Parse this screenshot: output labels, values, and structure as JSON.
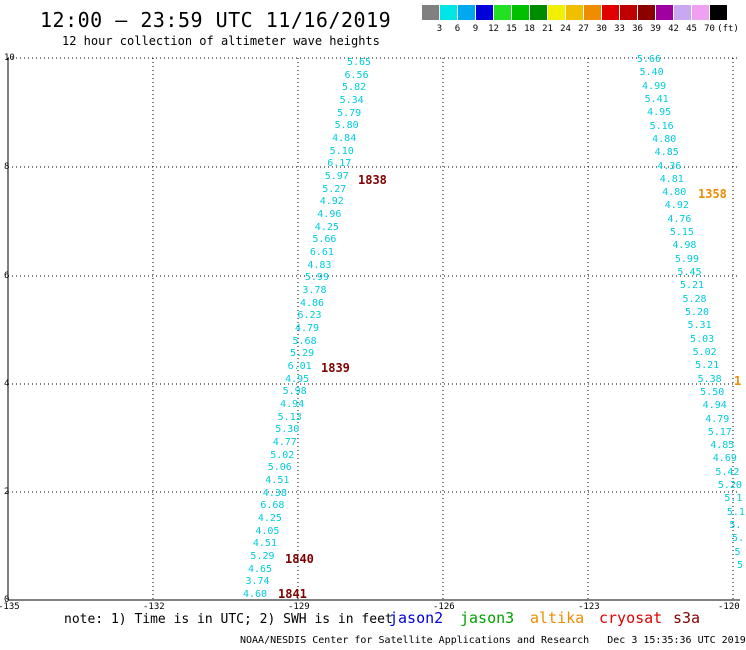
{
  "title": "12:00 – 23:59 UTC 11/16/2019",
  "subtitle": "12 hour collection of altimeter wave heights",
  "legend": {
    "unit": "(ft)",
    "items": [
      {
        "color": "#808080",
        "label": "3"
      },
      {
        "color": "#00e5e5",
        "label": "6"
      },
      {
        "color": "#00a8f0",
        "label": "9"
      },
      {
        "color": "#0000d8",
        "label": "12"
      },
      {
        "color": "#22e022",
        "label": "15"
      },
      {
        "color": "#00c000",
        "label": "18"
      },
      {
        "color": "#008c00",
        "label": "21"
      },
      {
        "color": "#f0f000",
        "label": "24"
      },
      {
        "color": "#f0c000",
        "label": "27"
      },
      {
        "color": "#f08c00",
        "label": "30"
      },
      {
        "color": "#e00000",
        "label": "33"
      },
      {
        "color": "#c00000",
        "label": "36"
      },
      {
        "color": "#8c0000",
        "label": "39"
      },
      {
        "color": "#a000a0",
        "label": "42"
      },
      {
        "color": "#c8a8f0",
        "label": "45"
      },
      {
        "color": "#f0a0f0",
        "label": "70"
      },
      {
        "color": "#000000",
        "label": ""
      }
    ]
  },
  "axes": {
    "y_ticks": [
      "10",
      "8",
      "6",
      "4",
      "2",
      "0"
    ],
    "x_ticks": [
      "-135",
      "-132",
      "-129",
      "-126",
      "-123",
      "-120"
    ]
  },
  "track_left": [
    "5.65",
    "6.56",
    "5.82",
    "5.34",
    "5.79",
    "5.80",
    "4.84",
    "5.10",
    "6.17",
    "5.97",
    "5.27",
    "4.92",
    "4.96",
    "4.25",
    "5.66",
    "6.61",
    "4.83",
    "5.99",
    "3.78",
    "4.86",
    "6.23",
    "4.79",
    "5.68",
    "5.29",
    "6.01",
    "4.95",
    "5.98",
    "4.94",
    "5.13",
    "5.30",
    "4.77",
    "5.02",
    "5.06",
    "4.51",
    "4.38",
    "6.68",
    "4.25",
    "4.05",
    "4.51",
    "5.29",
    "4.65",
    "3.74",
    "4.60"
  ],
  "track_right": [
    "5.66",
    "5.40",
    "4.99",
    "5.41",
    "4.95",
    "5.16",
    "4.80",
    "4.85",
    "4.36",
    "4.81",
    "4.80",
    "4.92",
    "4.76",
    "5.15",
    "4.98",
    "5.99",
    "5.45",
    "5.21",
    "5.28",
    "5.20",
    "5.31",
    "5.03",
    "5.02",
    "5.21",
    "5.38",
    "5.50",
    "4.94",
    "4.79",
    "5.17",
    "4.85",
    "4.69",
    "5.42",
    "5.20",
    "5.1",
    "5.1",
    "5.",
    "5.",
    "5",
    "5"
  ],
  "time_marks": [
    {
      "label": "1838",
      "color": "#800000"
    },
    {
      "label": "1839",
      "color": "#800000"
    },
    {
      "label": "1840",
      "color": "#800000"
    },
    {
      "label": "1841",
      "color": "#800000"
    },
    {
      "label": "1358",
      "color": "#f08c00"
    },
    {
      "label": "1",
      "color": "#f08c00"
    }
  ],
  "footer": {
    "note": "note: 1) Time is in UTC; 2) SWH is in feet",
    "satellites": [
      {
        "name": "jason2",
        "color": "#0000d8"
      },
      {
        "name": "jason3",
        "color": "#00a000"
      },
      {
        "name": "altika",
        "color": "#f08c00"
      },
      {
        "name": "cryosat",
        "color": "#e00000"
      },
      {
        "name": "s3a",
        "color": "#800000"
      }
    ],
    "credit": "NOAA/NESDIS Center for Satellite Applications and Research",
    "timestamp": "Dec  3 15:35:36 UTC 2019"
  }
}
